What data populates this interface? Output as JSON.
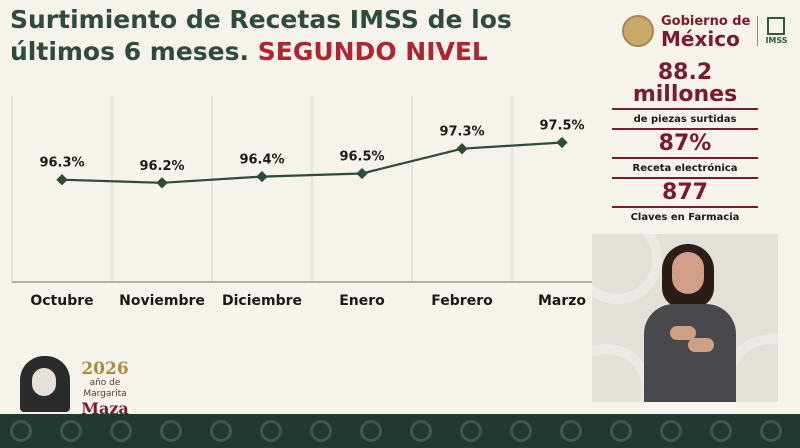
{
  "header": {
    "title_main": "Surtimiento de Recetas IMSS de los últimos 6 meses.",
    "title_accent": "SEGUNDO NIVEL"
  },
  "logos": {
    "gov_line1": "Gobierno de",
    "gov_line2": "México",
    "imss": "IMSS"
  },
  "stats": [
    {
      "value": "88.2 millones",
      "label": "de piezas surtidas"
    },
    {
      "value": "87%",
      "label": "Receta electrónica"
    },
    {
      "value": "877",
      "label": "Claves en Farmacia"
    }
  ],
  "footer": {
    "year": "2026",
    "line1": "año de",
    "line2": "Margarita",
    "line3": "Maza"
  },
  "colors": {
    "title_green": "#2f4a3e",
    "accent_red": "#b0242f",
    "guinda": "#7a1a2c",
    "line": "#2f4a3e"
  },
  "chart_data": {
    "type": "line",
    "categories": [
      "Octubre",
      "Noviembre",
      "Diciembre",
      "Enero",
      "Febrero",
      "Marzo"
    ],
    "series": [
      {
        "values": [
          96.3,
          96.2,
          96.4,
          96.5,
          97.3,
          97.5
        ]
      }
    ],
    "data_labels": [
      "96.3%",
      "96.2%",
      "96.4%",
      "96.5%",
      "97.3%",
      "97.5%"
    ],
    "ylim": [
      93,
      99
    ],
    "grid": "vertical"
  }
}
